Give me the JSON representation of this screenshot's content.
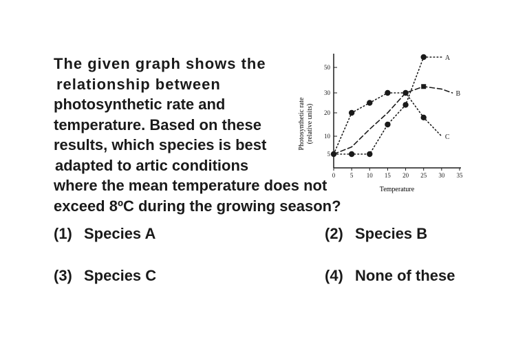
{
  "question": {
    "lines": [
      "The given graph shows the",
      "relationship between",
      "photosynthetic rate and",
      "temperature. Based on these",
      "results, which species is best",
      "adapted to artic conditions",
      "where the mean temperature does not",
      "exceed 8ºC during the growing season?"
    ]
  },
  "options": [
    {
      "number": "(1)",
      "label": "Species A"
    },
    {
      "number": "(2)",
      "label": "Species B"
    },
    {
      "number": "(3)",
      "label": "Species C"
    },
    {
      "number": "(4)",
      "label": "None of these"
    }
  ],
  "chart_data": {
    "type": "line",
    "xlabel": "Temperature",
    "ylabel": "Photosynthetic rate",
    "ylabel_sub": "(relative units)",
    "x_ticks": [
      "0",
      "5",
      "10",
      "15",
      "20",
      "25",
      "30",
      "35"
    ],
    "y_ticks": [
      "5",
      "10",
      "20",
      "30",
      "50"
    ],
    "series": [
      {
        "name": "A",
        "style": "dotted",
        "x": [
          0,
          5,
          10,
          15,
          20,
          25,
          30
        ],
        "y": [
          5,
          5,
          5,
          15,
          24,
          55,
          55
        ],
        "markers": [
          5,
          10,
          15,
          20,
          25
        ]
      },
      {
        "name": "B",
        "style": "dashed",
        "x": [
          0,
          5,
          10,
          15,
          20,
          25,
          30,
          33
        ],
        "y": [
          5,
          7,
          13,
          20,
          30,
          35,
          33,
          30
        ],
        "markers": [
          25
        ]
      },
      {
        "name": "C",
        "style": "dotted",
        "x": [
          0,
          5,
          10,
          15,
          20,
          25,
          30
        ],
        "y": [
          5,
          20,
          25,
          30,
          30,
          18,
          10
        ],
        "markers": [
          0,
          5,
          10,
          15,
          20,
          25
        ]
      }
    ],
    "colors": {
      "ink": "#1a1a1a"
    }
  }
}
